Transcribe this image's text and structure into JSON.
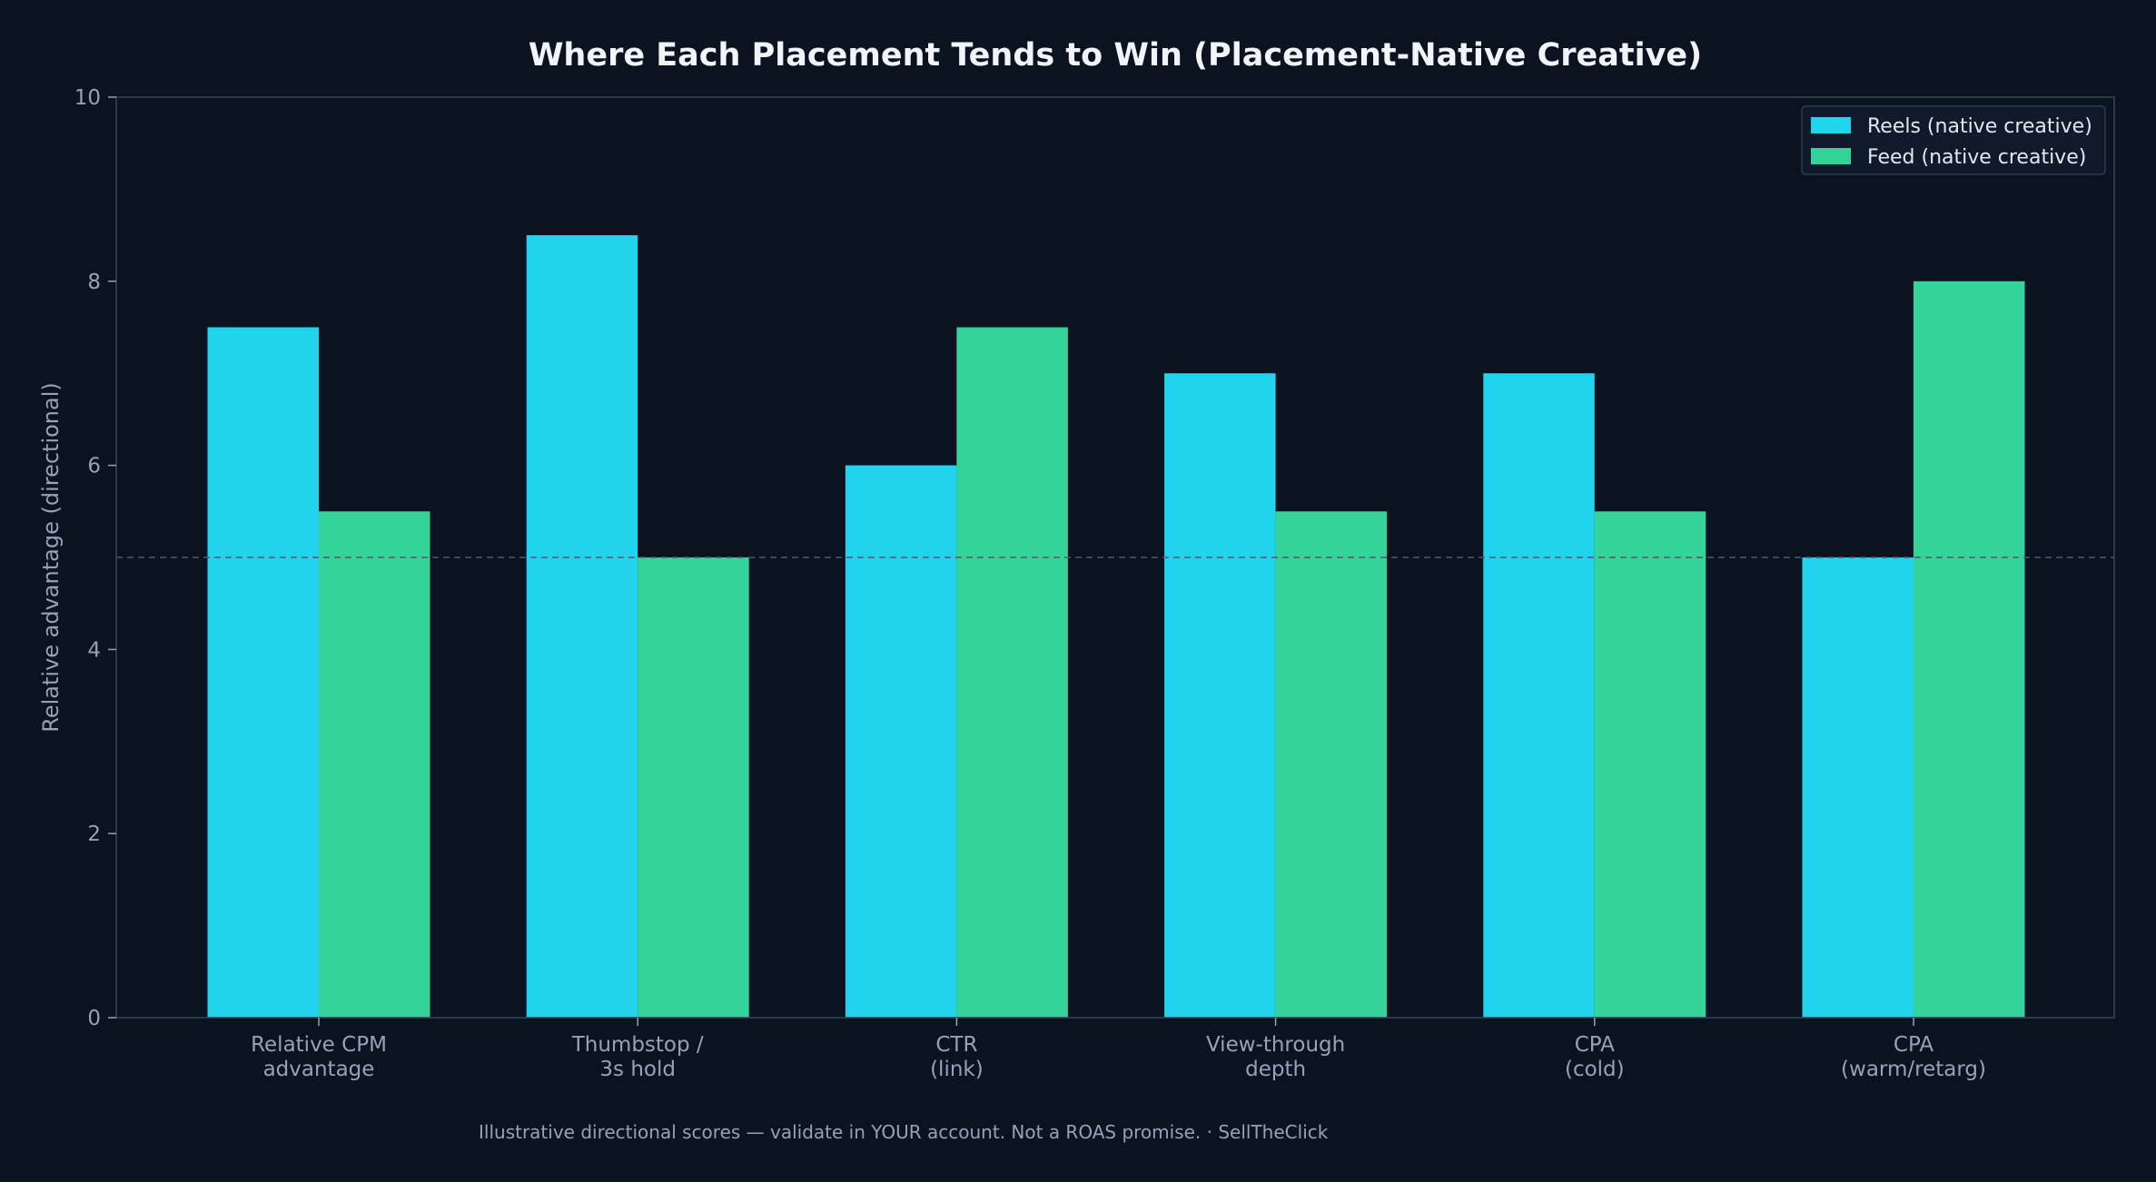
{
  "chart_data": {
    "type": "bar",
    "title": "Where Each Placement Tends to Win (Placement-Native Creative)",
    "xlabel": "",
    "ylabel": "Relative advantage (directional)",
    "ylim": [
      0,
      10
    ],
    "yticks": [
      0,
      2,
      4,
      6,
      8,
      10
    ],
    "categories": [
      [
        "Relative CPM",
        "advantage"
      ],
      [
        "Thumbstop /",
        "3s hold"
      ],
      [
        "CTR",
        "(link)"
      ],
      [
        "View-through",
        "depth"
      ],
      [
        "CPA",
        "(cold)"
      ],
      [
        "CPA",
        "(warm/retarg)"
      ]
    ],
    "series": [
      {
        "name": "Reels (native creative)",
        "color": "#22d3ee",
        "values": [
          7.5,
          8.5,
          6.0,
          7.0,
          7.0,
          5.0
        ]
      },
      {
        "name": "Feed (native creative)",
        "color": "#34d399",
        "values": [
          5.5,
          5.0,
          7.5,
          5.5,
          5.5,
          8.0
        ]
      }
    ],
    "reference_line": {
      "y": 5,
      "style": "dashed"
    },
    "grid": false,
    "legend_position": "top-right",
    "footnote": "Illustrative directional scores — validate in YOUR account. Not a ROAS promise.  ·  SellTheClick"
  },
  "colors": {
    "background": "#0b1220",
    "axis": "#334155",
    "text_muted": "#94a3b8"
  }
}
